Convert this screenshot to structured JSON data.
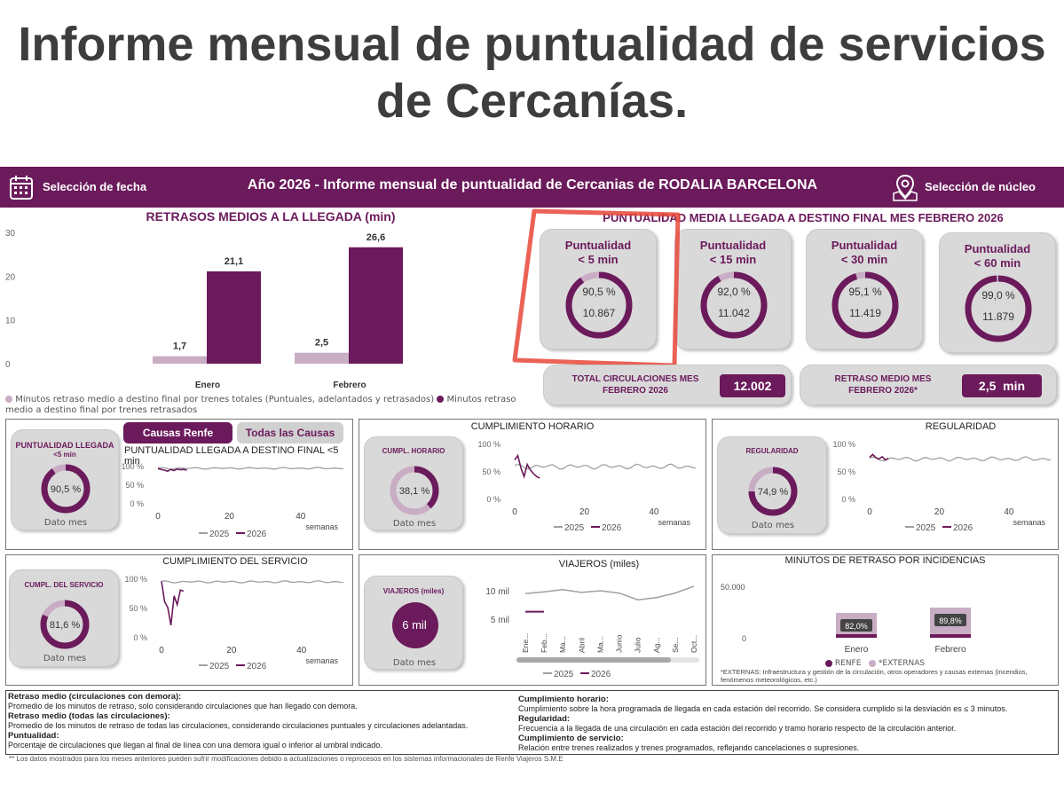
{
  "headline": {
    "line1": "Informe mensual de puntualidad de servicios",
    "line2": "de Cercanías."
  },
  "topbar": {
    "date_selector": "Selección de fecha",
    "title": "Año 2026 - Informe mensual de puntualidad de Cercanias de RODALIA BARCELONA",
    "nucleo_selector": "Selección de núcleo",
    "calendar_icon": "calendar-icon",
    "map_pin_icon": "map-pin-icon"
  },
  "colors": {
    "brand": "#6b1a5b",
    "light": "#c9adc4",
    "card": "#d9d9d9",
    "highlight": "#e8473a",
    "line_2025": "#a0a0a0"
  },
  "retrasos": {
    "title": "RETRASOS MEDIOS A LA LLEGADA (min)",
    "legend_puntuales": "Minutos retraso medio a destino final por trenes totales (Puntuales, adelantados y retrasados)",
    "legend_retrasados": "Minutos retraso medio a destino final por trenes retrasados"
  },
  "chart_data": [
    {
      "type": "bar",
      "title": "RETRASOS MEDIOS A LA LLEGADA (min)",
      "categories": [
        "Enero",
        "Febrero"
      ],
      "ylim": [
        0,
        30
      ],
      "yticks": [
        0,
        10,
        20,
        30
      ],
      "series": [
        {
          "name": "Minutos retraso medio a destino final por trenes totales (Puntuales, adelantados y retrasados)",
          "values": [
            1.7,
            2.5
          ],
          "labels": [
            "1,7",
            "2,5"
          ],
          "color": "#c9adc4"
        },
        {
          "name": "Minutos retraso medio a destino final por trenes retrasados",
          "values": [
            21.1,
            26.6
          ],
          "labels": [
            "21,1",
            "26,6"
          ],
          "color": "#6b1a5b"
        }
      ]
    },
    {
      "type": "bar",
      "title": "MINUTOS DE RETRASO POR INCIDENCIAS",
      "categories": [
        "Enero",
        "Febrero"
      ],
      "yticks": [
        "50.000",
        "0"
      ],
      "series": [
        {
          "name": "RENFE",
          "values": [
            18.0,
            10.2
          ],
          "labels": [
            "",
            ""
          ]
        },
        {
          "name": "*EXTERNAS",
          "values": [
            82.0,
            89.8
          ],
          "labels": [
            "82,0%",
            "89,8%"
          ]
        }
      ]
    }
  ],
  "puntualidad_media": {
    "title": "PUNTUALIDAD MEDIA LLEGADA A DESTINO FINAL MES FEBRERO 2026",
    "cards": [
      {
        "label1": "Puntualidad",
        "label2": "< 5 min",
        "pct": "90,5 %",
        "count": "10.867",
        "fraction": 0.905
      },
      {
        "label1": "Puntualidad",
        "label2": "< 15 min",
        "pct": "92,0 %",
        "count": "11.042",
        "fraction": 0.92
      },
      {
        "label1": "Puntualidad",
        "label2": "< 30 min",
        "pct": "95,1 %",
        "count": "11.419",
        "fraction": 0.951
      },
      {
        "label1": "Puntualidad",
        "label2": "< 60 min",
        "pct": "99,0 %",
        "count": "11.879",
        "fraction": 0.99
      }
    ],
    "total_label": "TOTAL CIRCULACIONES MES FEBRERO 2026",
    "total_value": "12.002",
    "retraso_label": "RETRASO MEDIO MES FEBRERO 2026*",
    "retraso_value": "2,5",
    "retraso_unit": "min"
  },
  "puntualidad_panel": {
    "card_title": "PUNTUALIDAD LLEGADA",
    "card_sub": "<5 min",
    "value": "90,5 %",
    "fraction": 0.905,
    "footer": "Dato mes",
    "btn_renfe": "Causas Renfe",
    "btn_todas": "Todas las Causas",
    "chart_title": "PUNTUALIDAD LLEGADA A DESTINO FINAL <5 min",
    "yticks": [
      "100 %",
      "50 %",
      "0 %"
    ],
    "xticks": [
      "0",
      "20",
      "40"
    ],
    "xlabel": "semanas",
    "legend_2025": "2025",
    "legend_2026": "2026"
  },
  "cumplimiento_horario": {
    "title": "CUMPLIMIENTO HORARIO",
    "card_title": "CUMPL. HORARIO",
    "value": "38,1 %",
    "fraction": 0.381,
    "footer": "Dato mes",
    "yticks": [
      "100 %",
      "50 %",
      "0 %"
    ],
    "xticks": [
      "0",
      "20",
      "40"
    ],
    "xlabel": "semanas",
    "legend_2025": "2025",
    "legend_2026": "2026"
  },
  "regularidad": {
    "title": "REGULARIDAD",
    "card_title": "REGULARIDAD",
    "value": "74,9 %",
    "fraction": 0.749,
    "footer": "Dato mes",
    "yticks": [
      "100 %",
      "50 %",
      "0 %"
    ],
    "xticks": [
      "0",
      "20",
      "40"
    ],
    "xlabel": "semanas",
    "legend_2025": "2025",
    "legend_2026": "2026"
  },
  "cumplimiento_servicio": {
    "title": "CUMPLIMIENTO DEL SERVICIO",
    "card_title": "CUMPL. DEL SERVICIO",
    "value": "81,6 %",
    "fraction": 0.816,
    "footer": "Dato mes",
    "yticks": [
      "100 %",
      "50 %",
      "0 %"
    ],
    "xticks": [
      "0",
      "20",
      "40"
    ],
    "xlabel": "semanas",
    "legend_2025": "2025",
    "legend_2026": "2026"
  },
  "viajeros": {
    "title": "VIAJEROS (miles)",
    "card_title": "VIAJEROS (miles)",
    "value": "6 mil",
    "footer": "Dato mes",
    "yticks": [
      "10 mil",
      "5 mil"
    ],
    "months": [
      "Ene...",
      "Feb...",
      "Ma...",
      "Abril",
      "Ma...",
      "Junio",
      "Julio",
      "Ag...",
      "Se...",
      "Oct..."
    ],
    "legend_2025": "2025",
    "legend_2026": "2026"
  },
  "incidencias": {
    "title": "MINUTOS DE RETRASO POR INCIDENCIAS",
    "ytick_top": "50.000",
    "ytick_bottom": "0",
    "bars": [
      {
        "label": "Enero",
        "pct": "82,0%"
      },
      {
        "label": "Febrero",
        "pct": "89,8%"
      }
    ],
    "legend_renfe": "RENFE",
    "legend_externas": "*EXTERNAS",
    "note": "*EXTERNAS: Infraestructura y gestión de la circulación, otros operadores y causas externas (incendios, fenómenos meteorológicos, etc.)"
  },
  "glossary": {
    "left": [
      {
        "term": "Retraso medio (circulaciones con demora):",
        "def": "Promedio de los minutos de retraso, solo considerando circulaciones que han llegado con demora."
      },
      {
        "term": "Retraso medio (todas las circulaciones):",
        "def": "Promedio de los minutos de retraso de todas las circulaciones, considerando circulaciones puntuales y circulaciones adelantadas."
      },
      {
        "term": "Puntualidad:",
        "def": "Porcentaje de circulaciones que llegan al final de línea con una demora igual o inferior al umbral indicado."
      }
    ],
    "right": [
      {
        "term": "Cumplimiento horario:",
        "def": "Cumplimiento sobre la hora programada de llegada en cada estación del recorrido. Se considera cumplido si la desviación es ≤ 3 minutos."
      },
      {
        "term": "Regularidad:",
        "def": "Frecuencia a la llegada de una circulación en cada estación del recorrido y tramo horario respecto de la circulación anterior."
      },
      {
        "term": "Cumplimiento de servicio:",
        "def": "Relación entre trenes realizados y trenes programados, reflejando cancelaciones o supresiones."
      }
    ]
  },
  "footnote": "** Los datos mostrados para los meses anteriores pueden sufrir modificaciones debido a actualizaciones o reprocesos en los sistemas informacionales de Renfe Viajeros S.M.E"
}
